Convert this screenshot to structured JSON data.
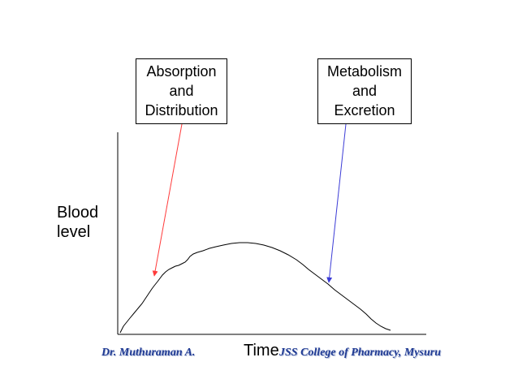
{
  "phase_labels": {
    "left": [
      "Absorption",
      "and",
      "Distribution"
    ],
    "right": [
      "Metabolism",
      "and",
      "Excretion"
    ]
  },
  "axes": {
    "y_label": [
      "Blood",
      "level"
    ],
    "x_label": "Time"
  },
  "footer": {
    "author": "Dr. Muthuraman A.",
    "institution": "JSS College of Pharmacy, Mysuru"
  },
  "colors": {
    "left_arrow": "#ff3b3b",
    "right_arrow": "#3b3bd6",
    "curve": "#000000",
    "footer_text": "#1f3a93"
  }
}
